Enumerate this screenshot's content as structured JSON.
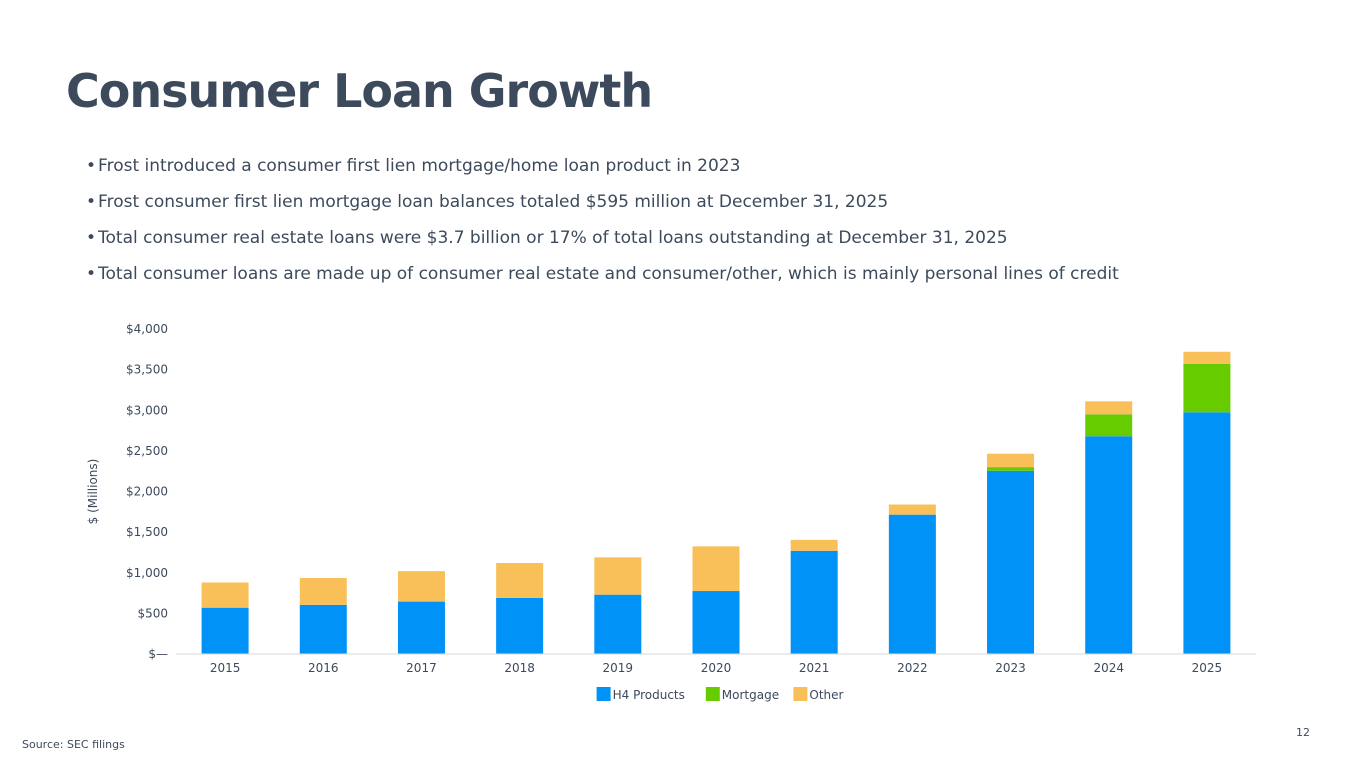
{
  "slide": {
    "title": "Consumer Loan Growth",
    "bullets": [
      "Frost introduced a consumer first lien mortgage/home loan product in 2023",
      "Frost consumer first lien mortgage loan balances totaled $595 million at December 31, 2025",
      "Total consumer real estate loans were $3.7 billion or 17% of total loans outstanding at December 31, 2025",
      "Total consumer loans are made up of consumer real estate and consumer/other, which is mainly personal lines of credit"
    ],
    "source": "Source: SEC filings",
    "page_number": "12"
  },
  "chart_data": {
    "type": "bar",
    "stacked": true,
    "categories": [
      "2015",
      "2016",
      "2017",
      "2018",
      "2019",
      "2020",
      "2021",
      "2022",
      "2023",
      "2024",
      "2025"
    ],
    "series": [
      {
        "name": "H4 Products",
        "color": "#0092f7",
        "values": [
          570,
          605,
          645,
          690,
          730,
          775,
          1270,
          1715,
          2255,
          2680,
          2975
        ]
      },
      {
        "name": "Mortgage",
        "color": "#66cc00",
        "values": [
          0,
          0,
          0,
          0,
          0,
          0,
          0,
          0,
          45,
          270,
          595
        ]
      },
      {
        "name": "Other",
        "color": "#f9c05a",
        "values": [
          310,
          330,
          375,
          430,
          460,
          550,
          135,
          125,
          165,
          160,
          150
        ]
      }
    ],
    "ylabel": "$ (Millions)",
    "ylim": [
      0,
      4000
    ],
    "yticks": [
      0,
      500,
      1000,
      1500,
      2000,
      2500,
      3000,
      3500,
      4000
    ],
    "ytick_labels": [
      "$—",
      "$500",
      "$1,000",
      "$1,500",
      "$2,000",
      "$2,500",
      "$3,000",
      "$3,500",
      "$4,000"
    ],
    "grid": false,
    "legend": "bottom-center"
  }
}
